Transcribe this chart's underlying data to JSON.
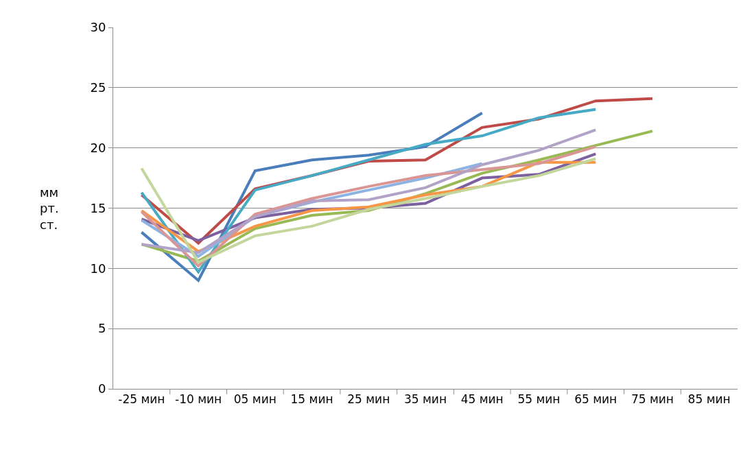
{
  "chart_data": {
    "type": "line",
    "ylabel": "мм\nрт.\nст.",
    "categories": [
      "-25 мин",
      "-10 мин",
      "05 мин",
      "15 мин",
      "25 мин",
      "35 мин",
      "45 мин",
      "55 мин",
      "65 мин",
      "75 мин",
      "85 мин"
    ],
    "ylim": [
      0,
      30
    ],
    "yticks": [
      0,
      5,
      10,
      15,
      20,
      25,
      30
    ],
    "grid": "y",
    "marker": "none",
    "line_style": "solid",
    "series": [
      {
        "color": "#4a7ebb",
        "values": [
          13.0,
          9.0,
          18.1,
          19.0,
          19.4,
          20.1,
          22.9,
          null,
          null,
          null,
          null
        ]
      },
      {
        "color": "#be4b48",
        "values": [
          16.1,
          12.1,
          16.6,
          17.7,
          18.9,
          19.0,
          21.7,
          22.4,
          23.9,
          24.1,
          null
        ]
      },
      {
        "color": "#98b954",
        "values": [
          12.0,
          10.6,
          13.3,
          14.4,
          14.8,
          16.2,
          17.9,
          19.0,
          20.2,
          21.4,
          null
        ]
      },
      {
        "color": "#7d60a0",
        "values": [
          14.1,
          12.3,
          14.2,
          14.9,
          15.0,
          15.4,
          17.5,
          17.8,
          19.5,
          null,
          null
        ]
      },
      {
        "color": "#46aac5",
        "values": [
          16.3,
          9.7,
          16.5,
          17.7,
          19.0,
          20.3,
          21.0,
          22.5,
          23.2,
          null,
          null
        ]
      },
      {
        "color": "#f79646",
        "values": [
          14.8,
          11.4,
          13.5,
          14.8,
          15.1,
          16.1,
          16.8,
          18.8,
          18.8,
          null,
          null
        ]
      },
      {
        "color": "#8db3e2",
        "values": [
          14.0,
          11.0,
          14.3,
          15.5,
          16.5,
          17.5,
          18.7,
          null,
          null,
          null,
          null
        ]
      },
      {
        "color": "#d99694",
        "values": [
          14.7,
          10.2,
          14.5,
          15.8,
          16.8,
          17.7,
          18.2,
          18.7,
          20.1,
          null,
          null
        ]
      },
      {
        "color": "#b3a2c7",
        "values": [
          12.0,
          11.3,
          14.3,
          15.6,
          15.7,
          16.7,
          18.6,
          19.8,
          21.5,
          null,
          null
        ]
      },
      {
        "color": "#c3d69b",
        "values": [
          18.3,
          10.5,
          12.7,
          13.5,
          14.9,
          15.8,
          16.8,
          17.7,
          19.1,
          null,
          null
        ]
      }
    ]
  }
}
